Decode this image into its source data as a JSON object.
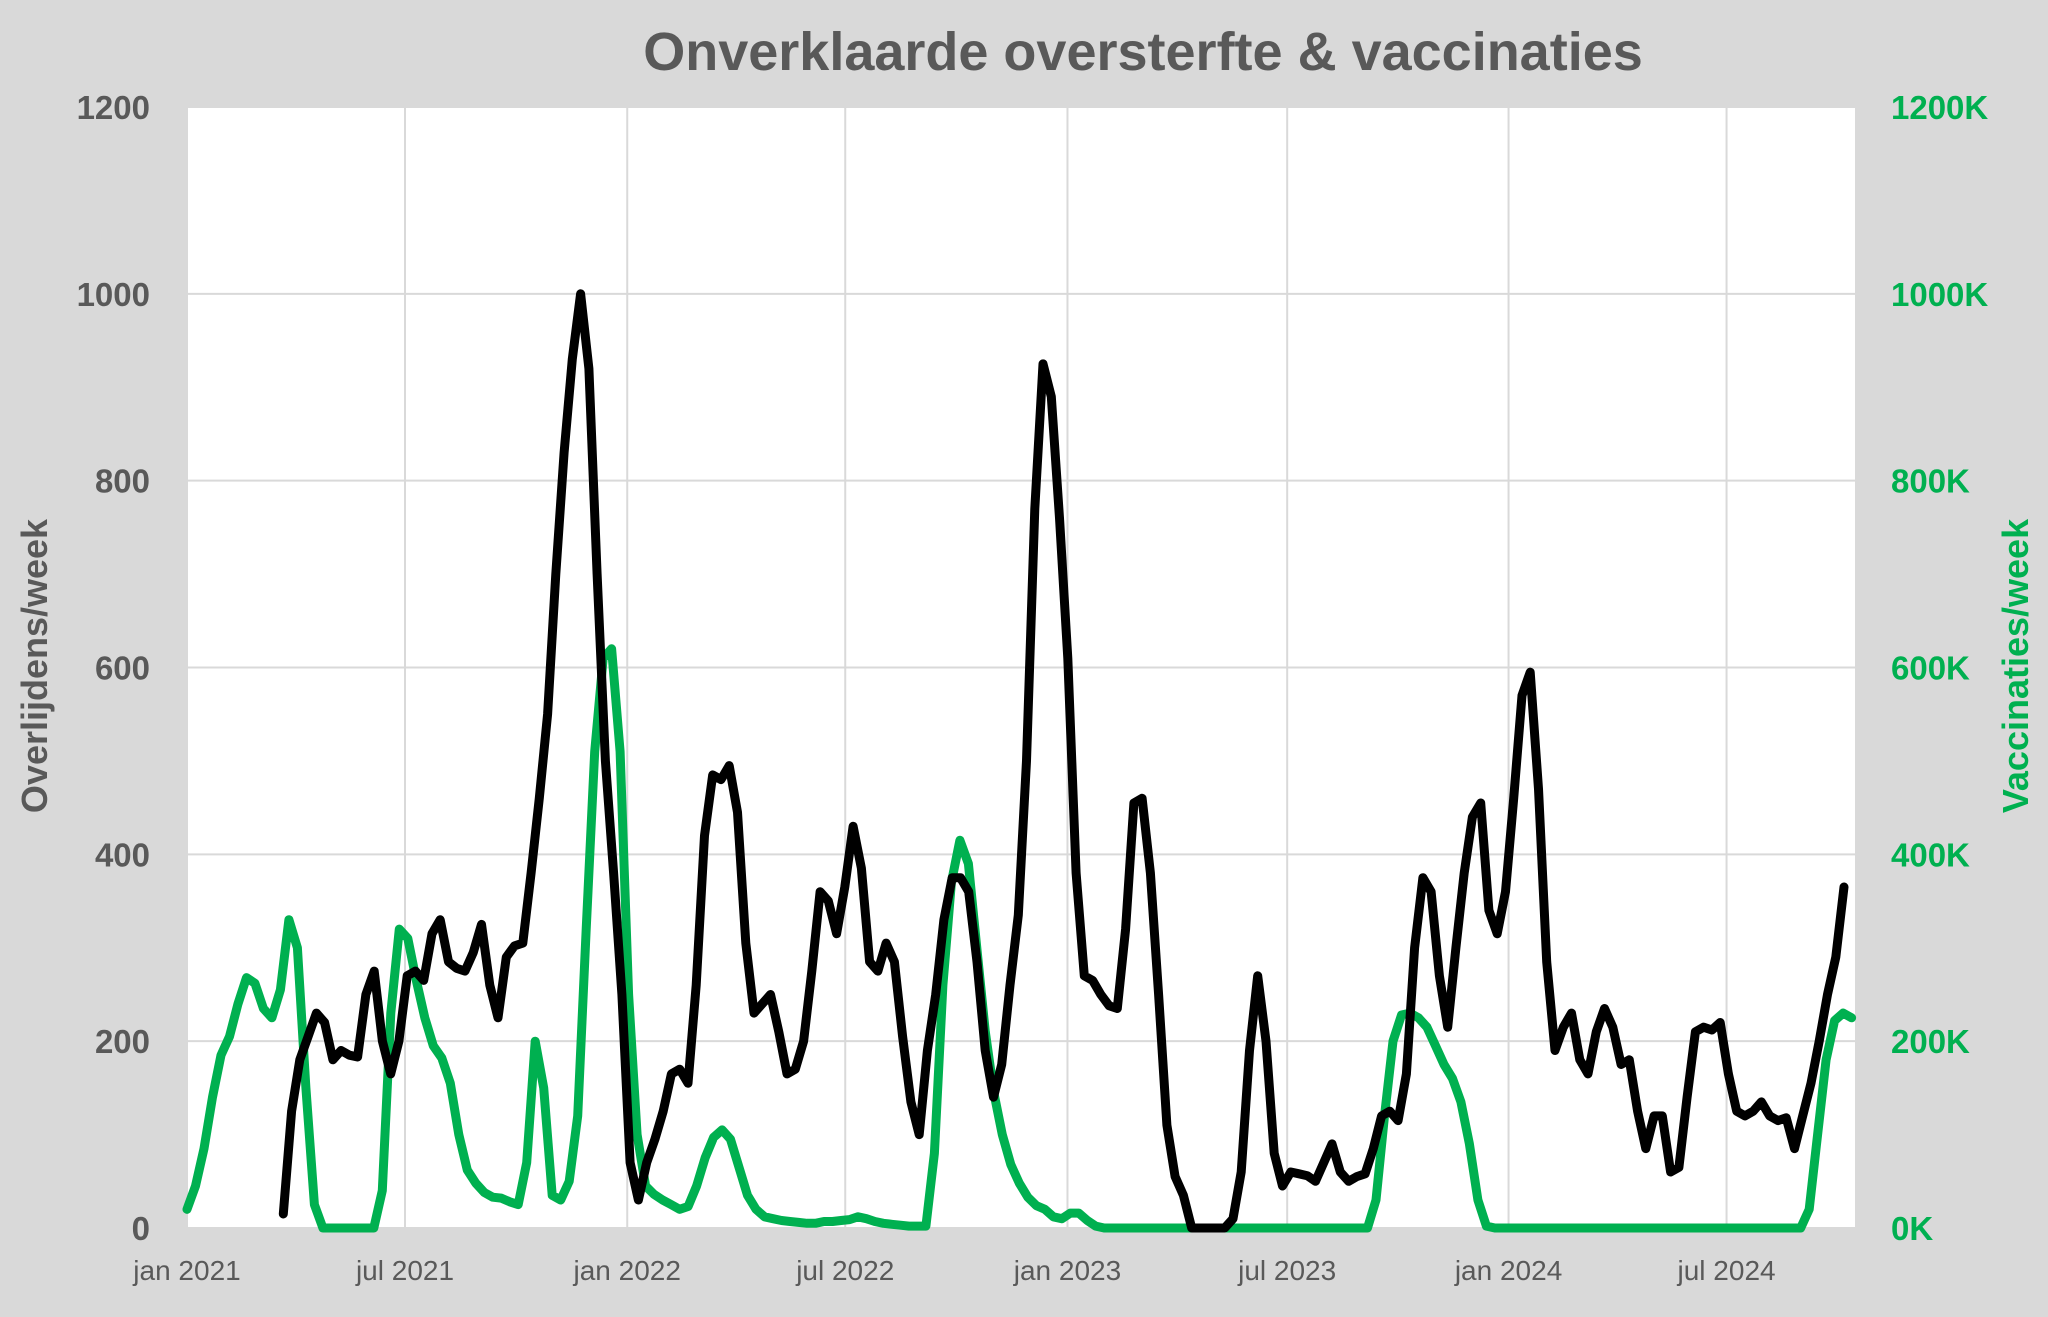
{
  "chart_data": {
    "type": "line",
    "title": "Onverklaarde oversterfte & vaccinaties",
    "ylabel": "Overlijdens/week",
    "y2label": "Vaccinaties/week",
    "ylim": [
      0,
      1200
    ],
    "y2lim": [
      0,
      1200
    ],
    "xlim_weeks": [
      0,
      197.4
    ],
    "grid": true,
    "yticks": [
      "0",
      "200",
      "400",
      "600",
      "800",
      "1000",
      "1200"
    ],
    "y2ticks": [
      "0K",
      "200K",
      "400K",
      "600K",
      "800K",
      "1000K",
      "1200K"
    ],
    "xticks": [
      {
        "label": "jan 2021",
        "week": 0
      },
      {
        "label": "jul 2021",
        "week": 25.8
      },
      {
        "label": "jan 2022",
        "week": 52.1
      },
      {
        "label": "jul 2022",
        "week": 77.9
      },
      {
        "label": "jan 2023",
        "week": 104.2
      },
      {
        "label": "jul 2023",
        "week": 130.2
      },
      {
        "label": "jan 2024",
        "week": 156.4
      },
      {
        "label": "jul 2024",
        "week": 182.2
      }
    ],
    "series": [
      {
        "name": "Onverklaarde oversterfte",
        "axis": "left",
        "color": "#000000",
        "start_week": 11.4,
        "end_week": 196.1,
        "values": [
          15,
          125,
          180,
          205,
          230,
          220,
          180,
          190,
          185,
          183,
          250,
          275,
          200,
          165,
          200,
          270,
          275,
          265,
          315,
          330,
          285,
          278,
          275,
          295,
          325,
          260,
          225,
          290,
          302,
          305,
          380,
          460,
          550,
          700,
          830,
          930,
          1000,
          920,
          700,
          500,
          380,
          250,
          70,
          30,
          70,
          95,
          125,
          165,
          170,
          155,
          260,
          420,
          485,
          480,
          495,
          445,
          305,
          230,
          240,
          250,
          210,
          165,
          170,
          200,
          275,
          360,
          350,
          315,
          365,
          430,
          385,
          285,
          275,
          305,
          285,
          205,
          135,
          100,
          190,
          250,
          330,
          375,
          375,
          360,
          285,
          190,
          140,
          175,
          260,
          335,
          500,
          770,
          925,
          890,
          760,
          610,
          380,
          270,
          265,
          250,
          238,
          235,
          320,
          455,
          460,
          380,
          250,
          110,
          55,
          35,
          0,
          0,
          0,
          0,
          0,
          10,
          60,
          190,
          270,
          200,
          80,
          45,
          60,
          58,
          56,
          50,
          70,
          90,
          60,
          50,
          55,
          58,
          85,
          120,
          125,
          115,
          165,
          300,
          375,
          360,
          270,
          215,
          300,
          380,
          440,
          455,
          340,
          315,
          360,
          460,
          570,
          595,
          470,
          285,
          190,
          215,
          230,
          180,
          165,
          210,
          235,
          215,
          175,
          180,
          125,
          85,
          120,
          120,
          60,
          65,
          140,
          210,
          215,
          212,
          220,
          165,
          125,
          120,
          125,
          135,
          120,
          115,
          118,
          85,
          120,
          155,
          200,
          250,
          290,
          365
        ]
      },
      {
        "name": "Vaccinaties (x1000)",
        "axis": "right",
        "color": "#00b050",
        "start_week": 0,
        "end_week": 197,
        "values": [
          20,
          45,
          85,
          140,
          185,
          205,
          240,
          268,
          262,
          235,
          225,
          255,
          330,
          300,
          150,
          25,
          0,
          0,
          0,
          0,
          0,
          0,
          0,
          40,
          230,
          320,
          310,
          265,
          225,
          195,
          182,
          155,
          100,
          62,
          48,
          38,
          33,
          32,
          28,
          25,
          70,
          200,
          150,
          35,
          30,
          50,
          120,
          320,
          510,
          610,
          620,
          510,
          250,
          100,
          45,
          36,
          30,
          25,
          20,
          23,
          45,
          75,
          97,
          105,
          95,
          65,
          35,
          20,
          12,
          10,
          8,
          7,
          6,
          5,
          5,
          7,
          7,
          8,
          9,
          12,
          10,
          7,
          5,
          4,
          3,
          2,
          2,
          2,
          80,
          260,
          370,
          415,
          390,
          300,
          210,
          145,
          100,
          68,
          48,
          33,
          24,
          20,
          12,
          10,
          16,
          16,
          8,
          2,
          0,
          0,
          0,
          0,
          0,
          0,
          0,
          0,
          0,
          0,
          0,
          0,
          0,
          0,
          0,
          0,
          0,
          0,
          0,
          0,
          0,
          0,
          0,
          0,
          0,
          0,
          0,
          0,
          0,
          0,
          0,
          0,
          30,
          120,
          200,
          228,
          230,
          225,
          215,
          195,
          175,
          160,
          135,
          90,
          30,
          2,
          0,
          0,
          0,
          0,
          0,
          0,
          0,
          0,
          0,
          0,
          0,
          0,
          0,
          0,
          0,
          0,
          0,
          0,
          0,
          0,
          0,
          0,
          0,
          0,
          0,
          0,
          0,
          0,
          0,
          0,
          0,
          0,
          0,
          0,
          0,
          0,
          0,
          20,
          100,
          180,
          222,
          230,
          225
        ]
      }
    ]
  }
}
